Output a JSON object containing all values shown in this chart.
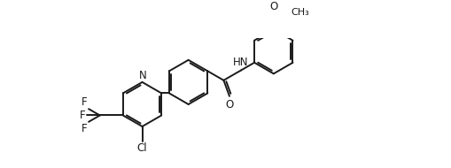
{
  "bg_color": "#ffffff",
  "line_color": "#1a1a1a",
  "text_color": "#1a1a1a",
  "lw": 1.4,
  "dbo": 0.06,
  "figsize": [
    5.09,
    1.9
  ],
  "dpi": 100,
  "xlim": [
    0.0,
    10.5
  ],
  "ylim": [
    -1.8,
    2.4
  ],
  "ring_r": 0.72
}
